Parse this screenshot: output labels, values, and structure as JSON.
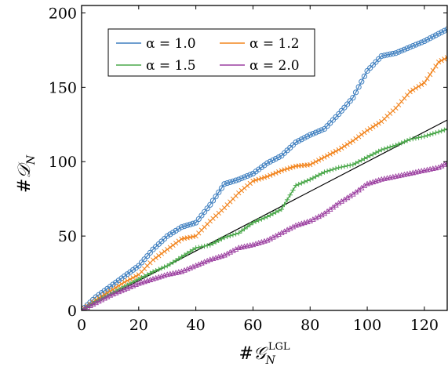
{
  "chart_data": {
    "type": "line",
    "xlabel": "#𝒢",
    "xlabel_sub": "N",
    "xlabel_sup": "LGL",
    "ylabel": "#𝒟",
    "ylabel_sub": "N",
    "xlim": [
      0,
      128
    ],
    "ylim": [
      0,
      205
    ],
    "xticks": [
      "0",
      "20",
      "40",
      "60",
      "80",
      "100",
      "120"
    ],
    "yticks": [
      "0",
      "50",
      "100",
      "150",
      "200"
    ],
    "grid": false,
    "legend_placement": "top-left",
    "reference_line": {
      "x": [
        0,
        128
      ],
      "y": [
        0,
        128
      ]
    },
    "series": [
      {
        "name": "α = 1.0",
        "color": "#3f7fbf",
        "marker": "circle",
        "x": [
          0,
          5,
          10,
          15,
          20,
          25,
          30,
          35,
          40,
          45,
          50,
          55,
          60,
          65,
          70,
          75,
          80,
          85,
          90,
          95,
          100,
          105,
          110,
          115,
          120,
          125,
          128
        ],
        "y": [
          0,
          9,
          16,
          23,
          30,
          41,
          50,
          56,
          59,
          71,
          85,
          88,
          92,
          99,
          104,
          113,
          118,
          122,
          132,
          143,
          161,
          171,
          173,
          177,
          181,
          186,
          189
        ]
      },
      {
        "name": "α = 1.2",
        "color": "#f2851f",
        "marker": "cross",
        "x": [
          0,
          5,
          10,
          15,
          20,
          25,
          30,
          35,
          40,
          45,
          50,
          55,
          60,
          65,
          70,
          75,
          80,
          85,
          90,
          95,
          100,
          105,
          110,
          115,
          120,
          125,
          128
        ],
        "y": [
          0,
          7,
          13,
          19,
          24,
          34,
          41,
          48,
          50,
          60,
          69,
          79,
          87,
          90,
          94,
          97,
          98,
          103,
          108,
          114,
          121,
          127,
          136,
          147,
          153,
          167,
          170
        ]
      },
      {
        "name": "α = 1.5",
        "color": "#4aa84a",
        "marker": "plus",
        "x": [
          0,
          5,
          10,
          15,
          20,
          25,
          30,
          35,
          40,
          45,
          50,
          55,
          60,
          65,
          70,
          75,
          80,
          85,
          90,
          95,
          100,
          105,
          110,
          115,
          120,
          125,
          128
        ],
        "y": [
          0,
          6,
          11,
          16,
          21,
          26,
          30,
          36,
          42,
          44,
          49,
          52,
          59,
          63,
          68,
          84,
          88,
          93,
          96,
          98,
          103,
          108,
          111,
          115,
          117,
          120,
          122
        ]
      },
      {
        "name": "α = 2.0",
        "color": "#9b3fa0",
        "marker": "triangle",
        "x": [
          0,
          5,
          10,
          15,
          20,
          25,
          30,
          35,
          40,
          45,
          50,
          55,
          60,
          65,
          70,
          75,
          80,
          85,
          90,
          95,
          100,
          105,
          110,
          115,
          120,
          125,
          128
        ],
        "y": [
          0,
          5,
          10,
          14,
          18,
          21,
          24,
          26,
          30,
          34,
          37,
          42,
          44,
          47,
          52,
          57,
          60,
          65,
          72,
          78,
          85,
          88,
          90,
          92,
          94,
          96,
          99
        ]
      }
    ]
  }
}
